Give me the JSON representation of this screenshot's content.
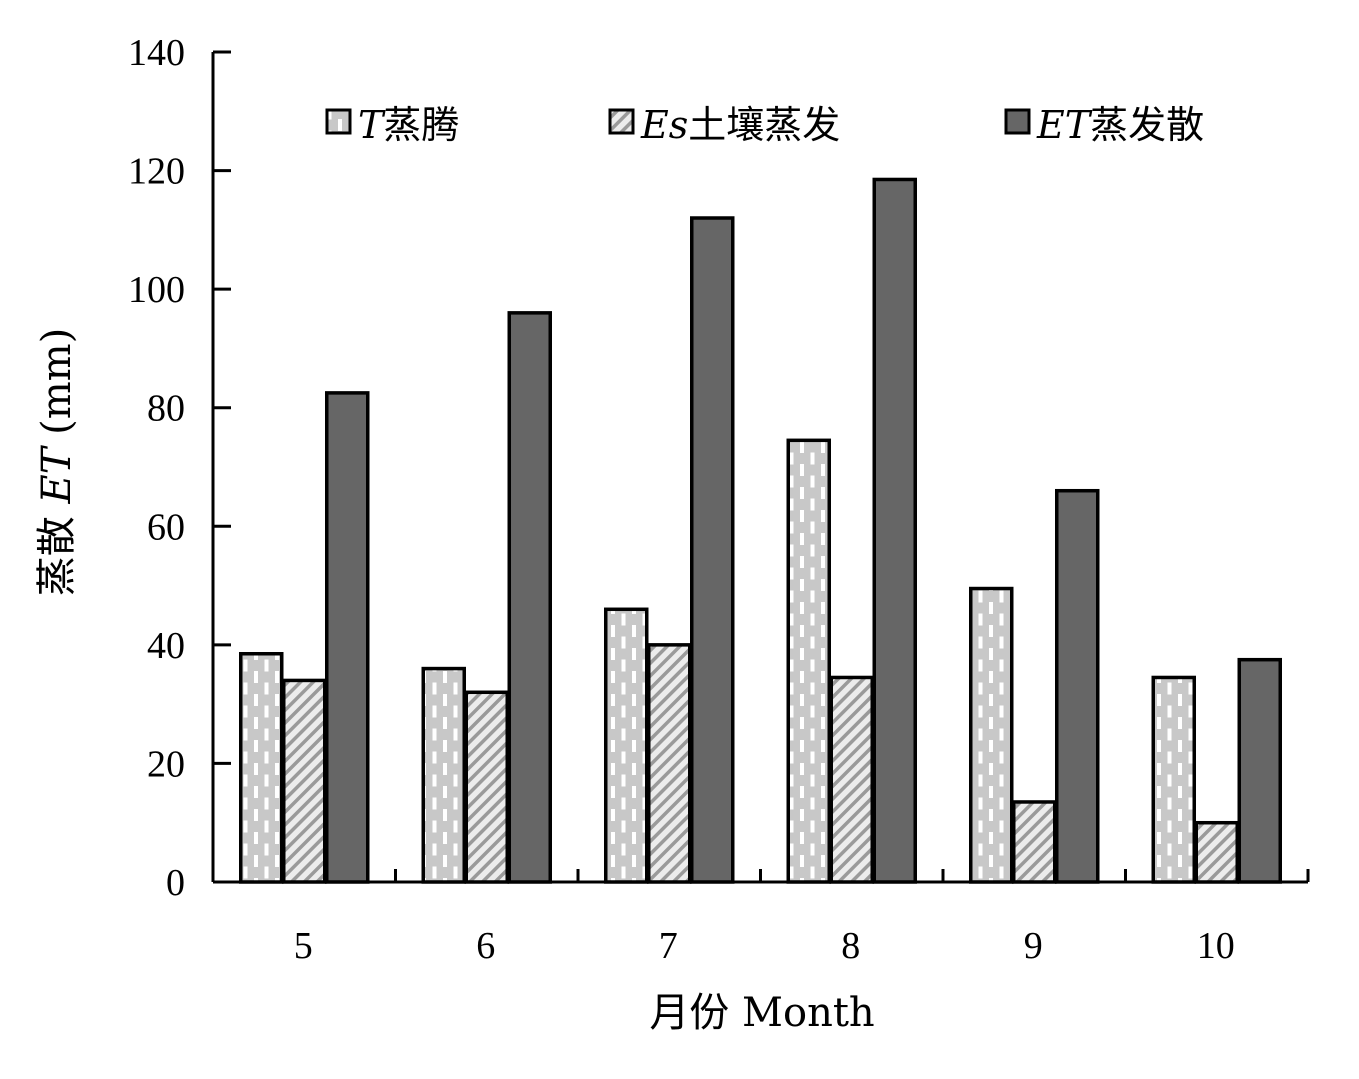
{
  "chart_data": {
    "type": "bar",
    "title": "",
    "xlabel": "月份 Month",
    "ylabel_prefix": "蒸散 ",
    "ylabel_italic": "ET",
    "ylabel_suffix": " (mm)",
    "ylim": [
      0,
      140
    ],
    "yticks": [
      0,
      20,
      40,
      60,
      80,
      100,
      120,
      140
    ],
    "categories": [
      "5",
      "6",
      "7",
      "8",
      "9",
      "10"
    ],
    "legend_position": "top",
    "series": [
      {
        "name_italic": "T",
        "name_text": "蒸腾",
        "pattern": "dashed-grid",
        "color": "#c8c8c8",
        "values": [
          38.5,
          36,
          46,
          74.5,
          49.5,
          34.5
        ]
      },
      {
        "name_italic": "Es",
        "name_text": "土壤蒸发",
        "pattern": "diagonal-hatch",
        "color": "#d9d9d9",
        "values": [
          34,
          32,
          40,
          34.5,
          13.5,
          10
        ]
      },
      {
        "name_italic": "ET",
        "name_text": "蒸发散",
        "pattern": "solid",
        "color": "#666666",
        "values": [
          82.5,
          96,
          112,
          118.5,
          66,
          37.5
        ]
      }
    ]
  }
}
